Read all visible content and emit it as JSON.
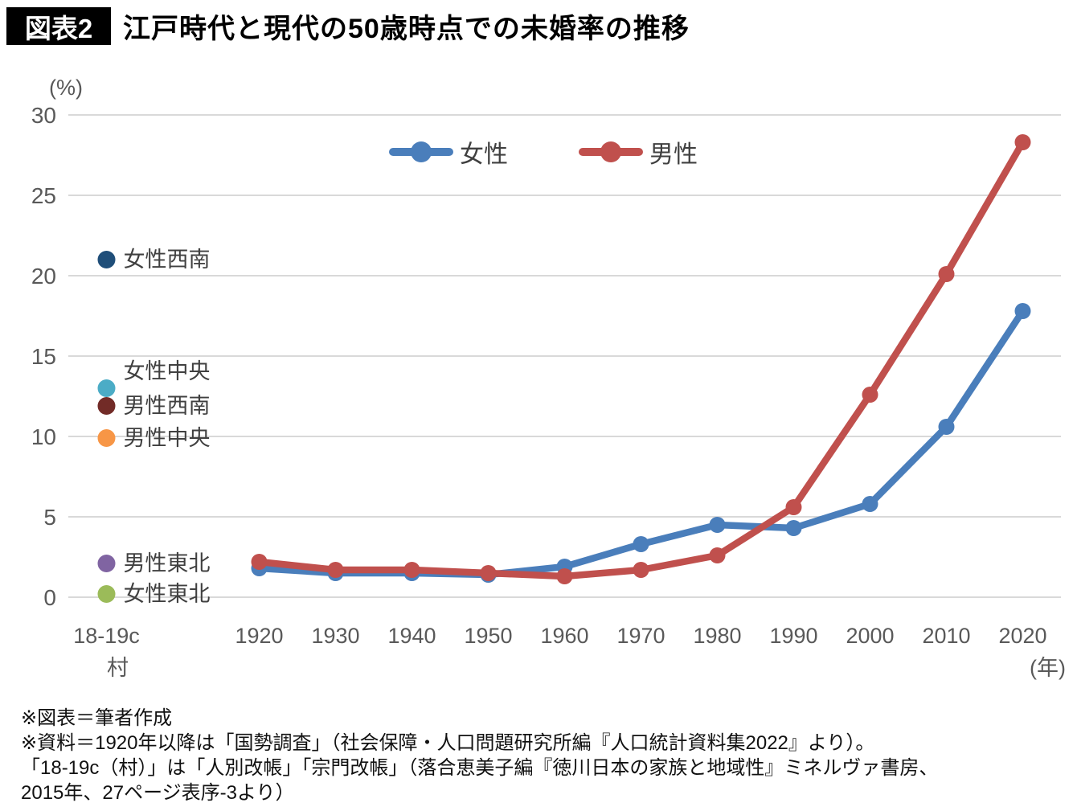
{
  "header": {
    "badge": "図表2",
    "title": "江戸時代と現代の50歳時点での未婚率の推移"
  },
  "chart_data": {
    "type": "line",
    "title": "江戸時代と現代の50歳時点での未婚率の推移",
    "y_axis": {
      "unit": "(%)",
      "ticks": [
        0,
        5,
        10,
        15,
        20,
        25,
        30
      ],
      "range": [
        0,
        30
      ],
      "grid": true
    },
    "x_axis": {
      "era_category": {
        "line1": "18-19c",
        "line2": "村"
      },
      "years": [
        "1920",
        "1930",
        "1940",
        "1950",
        "1960",
        "1970",
        "1980",
        "1990",
        "2000",
        "2010",
        "2020"
      ],
      "unit": "(年)"
    },
    "legend_position": "top-center",
    "series": [
      {
        "name": "女性",
        "color": "#4a7ebb",
        "values": [
          1.8,
          1.5,
          1.5,
          1.4,
          1.9,
          3.3,
          4.5,
          4.3,
          5.8,
          10.6,
          17.8
        ]
      },
      {
        "name": "男性",
        "color": "#c0504d",
        "values": [
          2.2,
          1.7,
          1.7,
          1.5,
          1.3,
          1.7,
          2.6,
          5.6,
          12.6,
          20.1,
          28.3
        ]
      }
    ],
    "era_points": [
      {
        "label": "女性西南",
        "color": "#1f4e79",
        "value": 21.0
      },
      {
        "label": "女性中央",
        "color": "#4bacc6",
        "value": 13.0
      },
      {
        "label": "男性西南",
        "color": "#722b27",
        "value": 11.9
      },
      {
        "label": "男性中央",
        "color": "#f79646",
        "value": 9.9
      },
      {
        "label": "男性東北",
        "color": "#8064a2",
        "value": 2.1
      },
      {
        "label": "女性東北",
        "color": "#9bbb59",
        "value": 0.2
      }
    ],
    "gridline_color": "#d9d9d9",
    "tick_label_color": "#595959",
    "annotation_label_color": "#404040"
  },
  "footer": {
    "lines": [
      "※図表＝筆者作成",
      "※資料＝1920年以降は「国勢調査」（社会保障・人口問題研究所編『人口統計資料集2022』より）。",
      "「18-19c（村）」は「人別改帳」「宗門改帳」（落合恵美子編『徳川日本の家族と地域性』ミネルヴァ書房、",
      "2015年、27ページ表序-3より）"
    ]
  }
}
